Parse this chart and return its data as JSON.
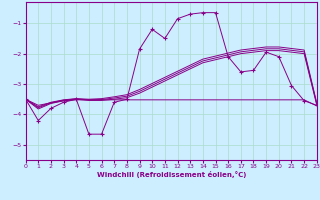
{
  "xlabel": "Windchill (Refroidissement éolien,°C)",
  "background_color": "#cceeff",
  "grid_color": "#aaddcc",
  "line_color": "#880088",
  "x_values": [
    0,
    1,
    2,
    3,
    4,
    5,
    6,
    7,
    8,
    9,
    10,
    11,
    12,
    13,
    14,
    15,
    16,
    17,
    18,
    19,
    20,
    21,
    22,
    23
  ],
  "curve1_y": [
    -3.5,
    -4.2,
    -3.8,
    -3.6,
    -3.5,
    -4.65,
    -4.65,
    -3.6,
    -3.5,
    -1.85,
    -1.2,
    -1.5,
    -0.85,
    -0.7,
    -0.65,
    -0.65,
    -2.1,
    -2.6,
    -2.55,
    -1.95,
    -2.1,
    -3.05,
    -3.55,
    -3.7
  ],
  "flat_y": [
    -3.5,
    -3.7,
    -3.62,
    -3.55,
    -3.52,
    -3.52,
    -3.52,
    -3.52,
    -3.52,
    -3.52,
    -3.52,
    -3.52,
    -3.52,
    -3.52,
    -3.52,
    -3.52,
    -3.52,
    -3.52,
    -3.52,
    -3.52,
    -3.52,
    -3.52,
    -3.52,
    -3.72
  ],
  "diag1_y": [
    -3.5,
    -3.75,
    -3.6,
    -3.52,
    -3.48,
    -3.5,
    -3.48,
    -3.42,
    -3.35,
    -3.18,
    -2.98,
    -2.78,
    -2.58,
    -2.38,
    -2.18,
    -2.08,
    -1.98,
    -1.88,
    -1.83,
    -1.78,
    -1.78,
    -1.83,
    -1.88,
    -3.63
  ],
  "diag2_y": [
    -3.5,
    -3.78,
    -3.62,
    -3.53,
    -3.49,
    -3.52,
    -3.51,
    -3.46,
    -3.4,
    -3.24,
    -3.04,
    -2.84,
    -2.64,
    -2.44,
    -2.24,
    -2.14,
    -2.04,
    -1.94,
    -1.89,
    -1.84,
    -1.84,
    -1.89,
    -1.94,
    -3.66
  ],
  "diag3_y": [
    -3.5,
    -3.82,
    -3.64,
    -3.55,
    -3.5,
    -3.54,
    -3.54,
    -3.5,
    -3.45,
    -3.3,
    -3.1,
    -2.9,
    -2.7,
    -2.5,
    -2.3,
    -2.2,
    -2.1,
    -2.0,
    -1.95,
    -1.9,
    -1.9,
    -1.95,
    -2.0,
    -3.7
  ],
  "ylim": [
    -5.5,
    -0.3
  ],
  "xlim": [
    0,
    23
  ],
  "yticks": [
    -5,
    -4,
    -3,
    -2,
    -1
  ],
  "xticks": [
    0,
    1,
    2,
    3,
    4,
    5,
    6,
    7,
    8,
    9,
    10,
    11,
    12,
    13,
    14,
    15,
    16,
    17,
    18,
    19,
    20,
    21,
    22,
    23
  ]
}
